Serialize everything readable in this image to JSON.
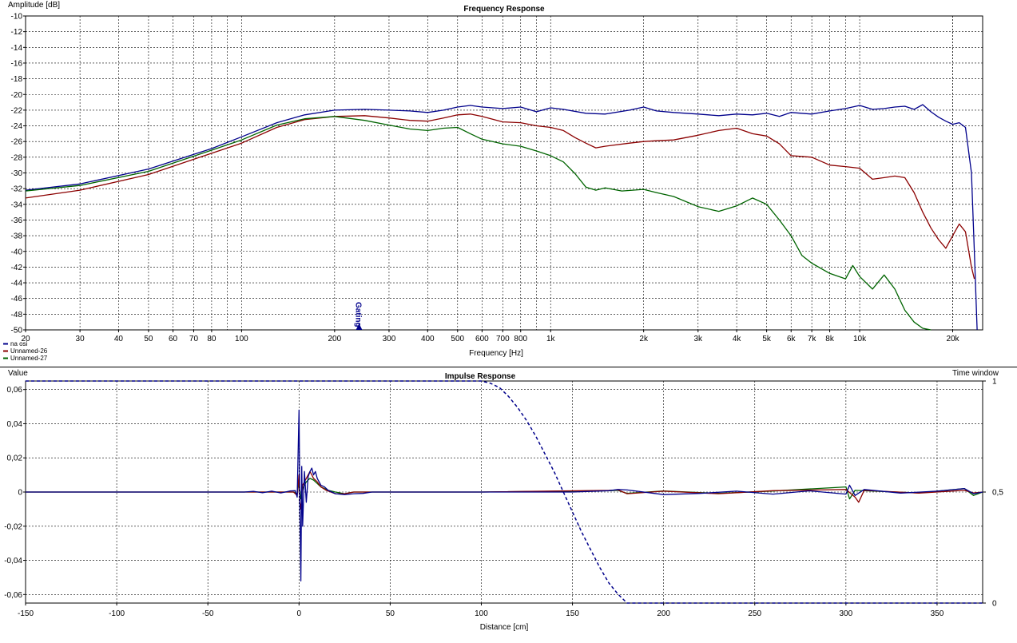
{
  "chart_data": [
    {
      "type": "line",
      "title": "Frequency Response",
      "xlabel": "Frequency [Hz]",
      "ylabel": "Amplitude [dB]",
      "xscale": "log",
      "xlim": [
        20,
        25000
      ],
      "ylim": [
        -50,
        -10
      ],
      "grid": true,
      "legend_position": "bottom-left",
      "x_tick_labels": [
        {
          "value": 20,
          "label": "20"
        },
        {
          "value": 30,
          "label": "30"
        },
        {
          "value": 40,
          "label": "40"
        },
        {
          "value": 50,
          "label": "50"
        },
        {
          "value": 60,
          "label": "60"
        },
        {
          "value": 70,
          "label": "70"
        },
        {
          "value": 80,
          "label": "80"
        },
        {
          "value": 100,
          "label": "100"
        },
        {
          "value": 200,
          "label": "200"
        },
        {
          "value": 300,
          "label": "300"
        },
        {
          "value": 400,
          "label": "400"
        },
        {
          "value": 500,
          "label": "500"
        },
        {
          "value": 600,
          "label": "600"
        },
        {
          "value": 700,
          "label": "700"
        },
        {
          "value": 800,
          "label": "800"
        },
        {
          "value": 1000,
          "label": "1k"
        },
        {
          "value": 2000,
          "label": "2k"
        },
        {
          "value": 3000,
          "label": "3k"
        },
        {
          "value": 4000,
          "label": "4k"
        },
        {
          "value": 5000,
          "label": "5k"
        },
        {
          "value": 6000,
          "label": "6k"
        },
        {
          "value": 7000,
          "label": "7k"
        },
        {
          "value": 8000,
          "label": "8k"
        },
        {
          "value": 10000,
          "label": "10k"
        },
        {
          "value": 20000,
          "label": "20k"
        }
      ],
      "y_ticks": [
        -10,
        -12,
        -14,
        -16,
        -18,
        -20,
        -22,
        -24,
        -26,
        -28,
        -30,
        -32,
        -34,
        -36,
        -38,
        -40,
        -42,
        -44,
        -46,
        -48,
        -50
      ],
      "annotations": [
        {
          "text": "Gating",
          "x": 240,
          "y": -50
        }
      ],
      "series": [
        {
          "name": "na osi",
          "color": "#00008b",
          "x": [
            20,
            30,
            50,
            80,
            100,
            130,
            160,
            200,
            250,
            300,
            350,
            400,
            450,
            500,
            550,
            600,
            700,
            800,
            900,
            1000,
            1100,
            1300,
            1500,
            1800,
            2000,
            2200,
            2500,
            3000,
            3500,
            4000,
            4500,
            5000,
            5500,
            6000,
            7000,
            8000,
            9000,
            10000,
            11000,
            12000,
            13000,
            14000,
            15000,
            16000,
            17000,
            18000,
            19000,
            20000,
            21000,
            22000,
            23000,
            23500,
            24000
          ],
          "y": [
            -32.2,
            -31.4,
            -29.5,
            -26.9,
            -25.4,
            -23.6,
            -22.6,
            -22.0,
            -21.9,
            -22.0,
            -22.1,
            -22.3,
            -22.0,
            -21.6,
            -21.4,
            -21.6,
            -21.8,
            -21.6,
            -22.2,
            -21.7,
            -21.9,
            -22.4,
            -22.5,
            -22.0,
            -21.6,
            -22.1,
            -22.3,
            -22.5,
            -22.7,
            -22.5,
            -22.6,
            -22.4,
            -22.8,
            -22.3,
            -22.5,
            -22.1,
            -21.8,
            -21.4,
            -21.9,
            -21.8,
            -21.6,
            -21.5,
            -21.9,
            -21.3,
            -22.2,
            -22.9,
            -23.4,
            -23.8,
            -23.6,
            -24.2,
            -30.0,
            -40.0,
            -50.0
          ]
        },
        {
          "name": "Unnamed-26",
          "color": "#8b0000",
          "x": [
            20,
            30,
            50,
            80,
            100,
            130,
            160,
            200,
            250,
            300,
            350,
            400,
            450,
            500,
            550,
            600,
            700,
            800,
            900,
            1000,
            1100,
            1200,
            1300,
            1400,
            1500,
            1800,
            2000,
            2200,
            2500,
            3000,
            3500,
            4000,
            4500,
            5000,
            5500,
            6000,
            7000,
            8000,
            9000,
            10000,
            11000,
            12000,
            13000,
            14000,
            15000,
            16000,
            17000,
            18000,
            19000,
            20000,
            21000,
            22000,
            23000,
            23500
          ],
          "y": [
            -33.2,
            -32.2,
            -30.2,
            -27.5,
            -26.2,
            -24.2,
            -23.2,
            -22.8,
            -22.7,
            -23.0,
            -23.3,
            -23.4,
            -23.0,
            -22.6,
            -22.5,
            -22.8,
            -23.5,
            -23.6,
            -24.0,
            -24.2,
            -24.6,
            -25.5,
            -26.2,
            -26.8,
            -26.6,
            -26.2,
            -26.0,
            -25.9,
            -25.8,
            -25.2,
            -24.6,
            -24.3,
            -25.0,
            -25.3,
            -26.3,
            -27.8,
            -28.0,
            -29.0,
            -29.2,
            -29.4,
            -30.8,
            -30.6,
            -30.4,
            -30.6,
            -32.5,
            -35.0,
            -37.0,
            -38.5,
            -39.6,
            -38.0,
            -36.5,
            -37.5,
            -42.0,
            -43.5
          ]
        },
        {
          "name": "Unnamed-27",
          "color": "#006400",
          "x": [
            20,
            30,
            50,
            80,
            100,
            130,
            160,
            200,
            250,
            300,
            350,
            400,
            450,
            500,
            550,
            600,
            700,
            800,
            900,
            1000,
            1100,
            1200,
            1300,
            1400,
            1500,
            1700,
            2000,
            2200,
            2500,
            3000,
            3500,
            4000,
            4500,
            5000,
            5500,
            6000,
            6500,
            7000,
            8000,
            9000,
            9500,
            10000,
            11000,
            12000,
            13000,
            14000,
            15000,
            16000,
            17000
          ],
          "y": [
            -32.3,
            -31.6,
            -29.8,
            -27.1,
            -25.8,
            -23.9,
            -23.1,
            -22.8,
            -23.3,
            -23.9,
            -24.4,
            -24.6,
            -24.3,
            -24.2,
            -25.0,
            -25.7,
            -26.3,
            -26.6,
            -27.2,
            -27.8,
            -28.6,
            -30.1,
            -31.8,
            -32.2,
            -31.9,
            -32.3,
            -32.1,
            -32.5,
            -33.0,
            -34.3,
            -34.9,
            -34.2,
            -33.2,
            -34.0,
            -36.0,
            -38.0,
            -40.5,
            -41.5,
            -42.8,
            -43.5,
            -41.8,
            -43.2,
            -44.8,
            -43.0,
            -44.8,
            -47.5,
            -49.0,
            -49.8,
            -50.0
          ]
        }
      ],
      "legend": [
        "na osi",
        "Unnamed-26",
        "Unnamed-27"
      ]
    },
    {
      "type": "line",
      "title": "Impulse Response",
      "xlabel": "Distance [cm]",
      "ylabel": "Value",
      "y2label": "Time window",
      "xlim": [
        -150,
        375
      ],
      "ylim": [
        -0.065,
        0.065
      ],
      "y2lim": [
        0,
        1
      ],
      "grid": true,
      "x_ticks": [
        -150,
        -100,
        -50,
        0,
        50,
        100,
        150,
        200,
        250,
        300,
        350
      ],
      "y_ticks": [
        0.06,
        0.04,
        0.02,
        0,
        -0.02,
        -0.04,
        -0.06
      ],
      "y_tick_labels": [
        "0,06",
        "0,04",
        "0,02",
        "0",
        "-0,02",
        "-0,04",
        "-0,06"
      ],
      "y2_ticks": [
        1,
        0.5,
        0
      ],
      "y2_tick_labels": [
        "1",
        "0,5",
        "0"
      ],
      "window": {
        "color": "#00008b",
        "x": [
          -150,
          0,
          100,
          105,
          110,
          115,
          120,
          125,
          130,
          135,
          140,
          145,
          150,
          155,
          160,
          165,
          170,
          175,
          180,
          375
        ],
        "y": [
          1,
          1,
          1,
          0.99,
          0.97,
          0.93,
          0.88,
          0.82,
          0.75,
          0.67,
          0.59,
          0.5,
          0.41,
          0.32,
          0.24,
          0.16,
          0.09,
          0.04,
          0,
          0
        ]
      },
      "series": [
        {
          "color": "#00008b",
          "x": [
            -150,
            -30,
            -25,
            -20,
            -15,
            -10,
            -5,
            -2,
            -1,
            0,
            0.5,
            1,
            1.5,
            2,
            3,
            4,
            5,
            6,
            7,
            8,
            9,
            10,
            12,
            14,
            16,
            20,
            25,
            30,
            35,
            40,
            60,
            80,
            100,
            150,
            170,
            175,
            180,
            200,
            220,
            240,
            260,
            280,
            300,
            302,
            305,
            310,
            330,
            350,
            365,
            370,
            375
          ],
          "y": [
            0,
            0,
            0.0004,
            -0.0004,
            0.0005,
            -0.0005,
            0.0006,
            0.0008,
            -0.003,
            0.048,
            -0.01,
            -0.052,
            0.015,
            -0.02,
            0.012,
            -0.006,
            0.009,
            0.012,
            0.014,
            0.01,
            0.012,
            0.008,
            0.004,
            0.003,
            0.001,
            -0.001,
            -0.0015,
            -0.001,
            -0.0008,
            0,
            0,
            0,
            0,
            0,
            0.0008,
            0.0015,
            0.0012,
            -0.0015,
            -0.0008,
            0.0005,
            -0.0012,
            0.0007,
            -0.0012,
            0.004,
            -0.002,
            0.0015,
            -0.0006,
            0.0005,
            0.002,
            -0.001,
            0
          ]
        },
        {
          "color": "#8b0000",
          "x": [
            -150,
            -3,
            -1,
            0,
            0.5,
            1,
            2,
            3,
            4,
            5,
            6,
            7,
            8,
            10,
            12,
            15,
            20,
            25,
            30,
            40,
            100,
            170,
            175,
            180,
            200,
            230,
            260,
            300,
            305,
            307,
            310,
            340,
            365,
            370,
            375
          ],
          "y": [
            0,
            0,
            -0.002,
            0.01,
            -0.006,
            -0.01,
            0.004,
            0.006,
            0.008,
            0.01,
            0.012,
            0.01,
            0.008,
            0.006,
            0.003,
            0.001,
            -0.001,
            -0.001,
            0,
            0,
            0,
            0.001,
            0.0012,
            -0.001,
            0.0005,
            -0.001,
            0.0008,
            0.0015,
            -0.003,
            -0.006,
            0.001,
            -0.0006,
            0.001,
            -0.0005,
            0
          ]
        },
        {
          "color": "#006400",
          "x": [
            -150,
            -3,
            -1,
            0,
            1,
            2,
            3,
            4,
            5,
            6,
            8,
            10,
            12,
            14,
            16,
            20,
            25,
            30,
            40,
            100,
            170,
            175,
            180,
            200,
            230,
            260,
            300,
            302,
            305,
            340,
            365,
            370,
            375
          ],
          "y": [
            0,
            0,
            -0.001,
            0.006,
            -0.004,
            0.002,
            0.004,
            0.006,
            0.007,
            0.008,
            0.007,
            0.005,
            0.003,
            0.002,
            0.001,
            0,
            -0.001,
            0,
            0,
            0,
            0.0008,
            0.001,
            -0.0008,
            0.0006,
            -0.0008,
            0.0006,
            0.003,
            -0.004,
            0.001,
            -0.0005,
            0.002,
            -0.002,
            0
          ]
        }
      ]
    }
  ]
}
